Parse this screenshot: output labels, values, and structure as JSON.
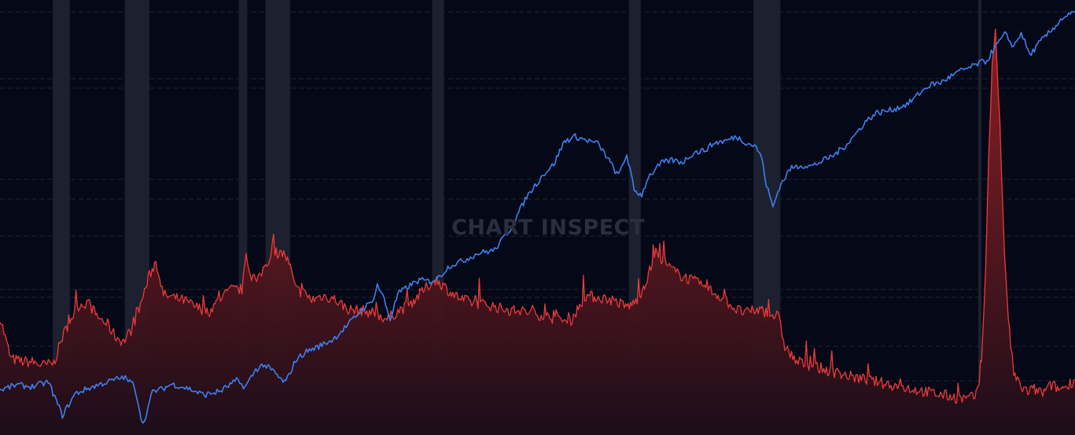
{
  "watermark": "CHART INSPECT",
  "colors": {
    "background": "#050816",
    "grid": "#1f2637",
    "recession_band": "#1d2230",
    "blue_line": "#3f7ff0",
    "red_line": "#ea3b3b",
    "red_fill_top": "#9b2225",
    "red_fill_bottom": "#1b0d19"
  },
  "chart_data": {
    "type": "line",
    "title": "",
    "xlabel": "",
    "ylabel": "",
    "xlim": [
      0,
      100
    ],
    "ylim": [
      0,
      100
    ],
    "grid": true,
    "legend": "none",
    "recession_bands": [
      [
        4.9,
        6.5
      ],
      [
        11.6,
        13.9
      ],
      [
        22.2,
        23.0
      ],
      [
        24.7,
        27.0
      ],
      [
        40.2,
        41.3
      ],
      [
        58.5,
        59.6
      ],
      [
        70.1,
        72.6
      ],
      [
        91.0,
        91.3
      ]
    ],
    "series": [
      {
        "kind": "line",
        "x": [
          0,
          1.5,
          3,
          4.5,
          5.8,
          7,
          8.5,
          10,
          11.5,
          12.5,
          13.3,
          14.2,
          15,
          16,
          17.5,
          19,
          20.5,
          22,
          22.8,
          23.8,
          24.5,
          25.5,
          26.2,
          26.6,
          27.5,
          28.5,
          29.5,
          31,
          32.5,
          33.8,
          34.6,
          35.1,
          35.6,
          36.3,
          37,
          38,
          39,
          40,
          40.8,
          41.8,
          43,
          44.5,
          46,
          47.5,
          49,
          50.5,
          51.5,
          52.5,
          53.5,
          54.5,
          55.6,
          56.5,
          57.5,
          58.3,
          59,
          59.7,
          60.3,
          60.9,
          61.5,
          62.5,
          63.5,
          64.5,
          65.5,
          66.5,
          67.5,
          68.5,
          69.5,
          70.2,
          70.8,
          71.3,
          71.9,
          72.5,
          73.5,
          74.5,
          75.5,
          76.5,
          77.5,
          78.5,
          79.5,
          80.5,
          81.5,
          82.5,
          83.5,
          84.5,
          85.5,
          86.5,
          87.5,
          88.5,
          89.5,
          90.3,
          91.1,
          91.8,
          92.5,
          93.5,
          94.3,
          95,
          95.8,
          96.8,
          97.8,
          98.8,
          100
        ],
        "values": [
          10.3,
          11.5,
          11.1,
          12.2,
          4.5,
          9.5,
          11.0,
          12.2,
          13.3,
          11.4,
          2.3,
          10.0,
          10.5,
          11.7,
          10.7,
          9.2,
          10.1,
          12.5,
          11.0,
          15.0,
          16.2,
          14.5,
          12.5,
          12.2,
          17.2,
          19.2,
          20.2,
          22.0,
          25.7,
          29.2,
          30.5,
          34.5,
          32.2,
          26.5,
          32.4,
          34.2,
          35.6,
          35.3,
          36.2,
          38.9,
          40.0,
          41.8,
          42.5,
          47.5,
          54.8,
          59.8,
          62.2,
          67.5,
          68.6,
          67.8,
          67.0,
          63.8,
          59.5,
          64.5,
          56.2,
          55.2,
          59.4,
          60.8,
          62.5,
          63.2,
          62.7,
          64.9,
          65.4,
          67.2,
          67.6,
          68.6,
          67.1,
          66.5,
          64.3,
          57.5,
          52.4,
          57.0,
          61.2,
          62.0,
          61.8,
          63.0,
          64.2,
          66.2,
          68.9,
          72.0,
          74.0,
          74.5,
          75.2,
          76.2,
          78.5,
          80.5,
          81.0,
          82.5,
          83.9,
          84.5,
          85.5,
          86.0,
          89.0,
          92.1,
          89.3,
          92.5,
          87.3,
          90.5,
          93.0,
          95.8,
          97.2
        ]
      },
      {
        "kind": "area",
        "x": [
          0,
          1,
          2.1,
          3,
          4,
          5,
          5.8,
          6.5,
          7.3,
          8.2,
          9,
          10,
          10.8,
          11.5,
          12.3,
          13.2,
          13.8,
          14.5,
          15.2,
          16.2,
          17.2,
          18.2,
          19.5,
          20.5,
          21.5,
          22.5,
          22.9,
          23.4,
          24,
          24.7,
          25.7,
          26.5,
          27,
          27.5,
          28.3,
          29,
          30,
          31,
          32.5,
          34,
          35,
          36,
          37,
          38,
          39.5,
          40.5,
          41.2,
          42,
          43,
          44,
          45.5,
          47,
          48.5,
          50,
          51.5,
          53,
          54.5,
          56,
          57.2,
          58.2,
          58.9,
          59.4,
          60.2,
          61,
          62,
          63,
          64.5,
          66,
          67.5,
          68.5,
          69.5,
          70.3,
          71,
          72,
          72.4,
          73,
          74,
          75,
          76,
          77,
          78,
          79,
          80,
          81,
          82,
          83,
          84,
          85,
          86,
          87,
          88,
          89,
          90,
          90.8,
          91.1,
          91.4,
          91.7,
          92,
          92.3,
          92.6,
          93,
          93.3,
          93.6,
          93.9,
          94.3,
          95,
          95.6,
          96.2,
          97,
          97.8,
          98.6,
          99.3,
          100
        ],
        "values": [
          27.2,
          17.5,
          16.9,
          16.8,
          16.0,
          16.5,
          22.5,
          26.3,
          29.8,
          30.5,
          27.4,
          25.4,
          22.5,
          21.5,
          24.5,
          31.0,
          36.0,
          40.0,
          32.2,
          31.5,
          30.9,
          29.4,
          28.5,
          31.5,
          33.4,
          33.5,
          40.2,
          36.7,
          35.3,
          39.5,
          42.0,
          41.5,
          38.5,
          33.5,
          32.5,
          31.1,
          32.0,
          31.4,
          28.8,
          28.5,
          27.9,
          26.6,
          28.5,
          29.8,
          33.5,
          35.8,
          34.4,
          32.6,
          31.1,
          30.4,
          29.9,
          28.8,
          28.5,
          27.8,
          26.8,
          26.0,
          32.0,
          31.5,
          30.9,
          29.5,
          30.1,
          31.5,
          36.0,
          41.9,
          39.1,
          37.1,
          35.4,
          33.4,
          31.0,
          28.8,
          28.1,
          28.7,
          28.5,
          27.5,
          27.3,
          20.5,
          17.0,
          16.2,
          15.6,
          14.8,
          14.2,
          13.5,
          13.0,
          12.5,
          12.0,
          11.5,
          11.0,
          10.5,
          10.0,
          9.5,
          9.1,
          8.5,
          8.3,
          9.0,
          12.5,
          20.0,
          40.0,
          65.0,
          86.0,
          93.0,
          72.0,
          50.0,
          34.0,
          24.0,
          14.0,
          11.0,
          10.0,
          10.5,
          9.6,
          11.5,
          10.5,
          11.4,
          12.8
        ]
      }
    ]
  }
}
